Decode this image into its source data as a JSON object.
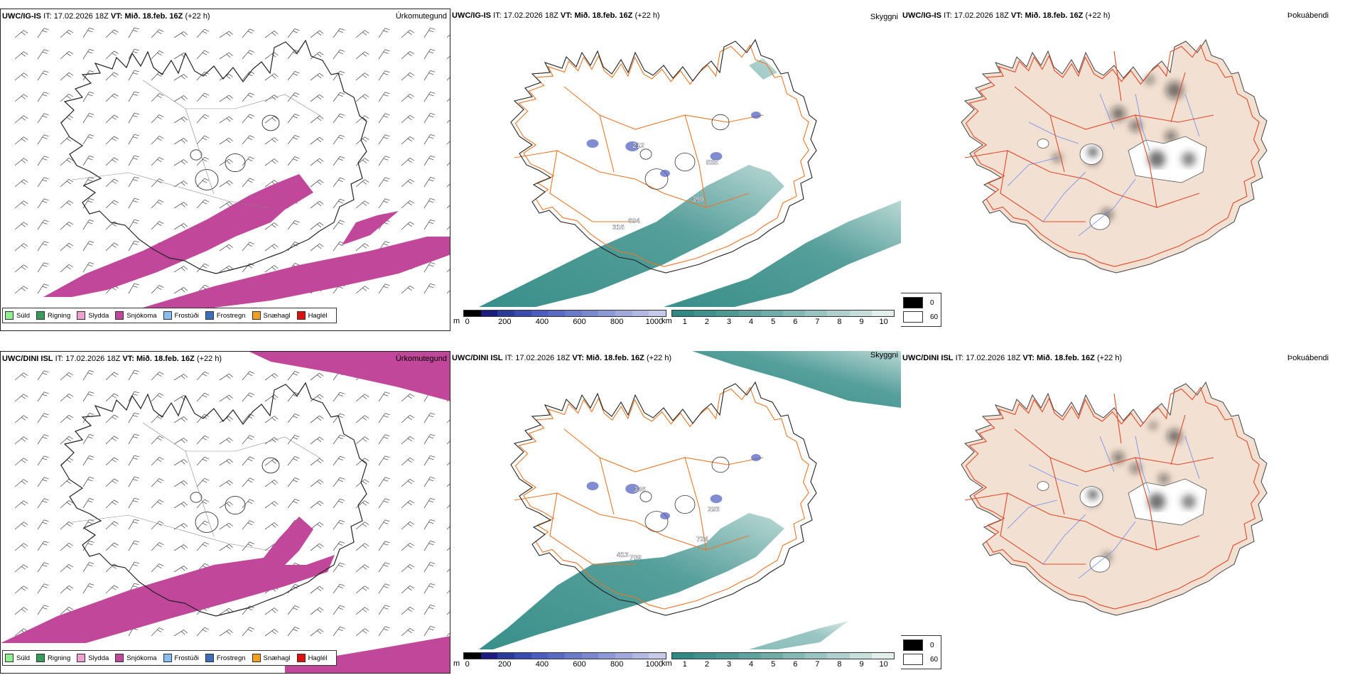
{
  "rows": [
    {
      "model": "UWC/IG-IS",
      "it_label": "IT:",
      "it_value": "17.02.2026 18Z",
      "vt_label": "VT:",
      "vt_value": "Mið. 18.feb. 16Z",
      "lead": "(+22 h)",
      "cloud_labels": [
        "316",
        "604",
        "390",
        "535",
        "212"
      ]
    },
    {
      "model": "UWC/DINI ISL",
      "it_label": "IT:",
      "it_value": "17.02.2026 18Z",
      "vt_label": "VT:",
      "vt_value": "Mið. 18.feb. 16Z",
      "lead": "(+22 h)",
      "cloud_labels": [
        "413",
        "709",
        "724",
        "293",
        "336"
      ]
    }
  ],
  "panel_titles": {
    "precip": "Úrkomutegund",
    "visibility": "Skyggni",
    "fog": "Þokuábendi"
  },
  "precip_legend": [
    {
      "label": "Súld",
      "color": "#90ee90"
    },
    {
      "label": "Rigning",
      "color": "#3a9a5c"
    },
    {
      "label": "Slydda",
      "color": "#f0a0d0"
    },
    {
      "label": "Snjókoma",
      "color": "#c0479a"
    },
    {
      "label": "Frostúði",
      "color": "#87bdf0"
    },
    {
      "label": "Frostregn",
      "color": "#3c6fb8"
    },
    {
      "label": "Snæhagl",
      "color": "#f0a020"
    },
    {
      "label": "Haglél",
      "color": "#e01010"
    }
  ],
  "cloudbase_scale": {
    "unit": "m",
    "ticks": [
      "0",
      "200",
      "400",
      "600",
      "800",
      "1000"
    ],
    "colors": [
      "#000000",
      "#1c1c80",
      "#2a3a9a",
      "#3a4cb0",
      "#4c5cc0",
      "#5a6ac4",
      "#6b7acb",
      "#7b88d0",
      "#8d98d6",
      "#a0a8dc",
      "#b2b8e2",
      "#c6cae8"
    ]
  },
  "visibility_scale": {
    "unit": "km",
    "ticks": [
      "1",
      "2",
      "3",
      "4",
      "5",
      "6",
      "7",
      "8",
      "9",
      "10"
    ],
    "colors": [
      "#2f8a85",
      "#3e928d",
      "#4d9a95",
      "#5ea39e",
      "#70ada8",
      "#84b8b4",
      "#9ac4c0",
      "#b0d0cd",
      "#c8dedb",
      "#e2eeec"
    ]
  },
  "fog_legend": [
    {
      "label": "0",
      "color": "#000000"
    },
    {
      "label": "60",
      "color": "#ffffff"
    }
  ],
  "map_colors": {
    "snow": "#c0479a",
    "teal": "#3a8f8a",
    "land_fog": "#f2e0d2",
    "roads": "#e8772a",
    "roads_red": "#e04a2a",
    "rivers": "#6b8cf0"
  }
}
